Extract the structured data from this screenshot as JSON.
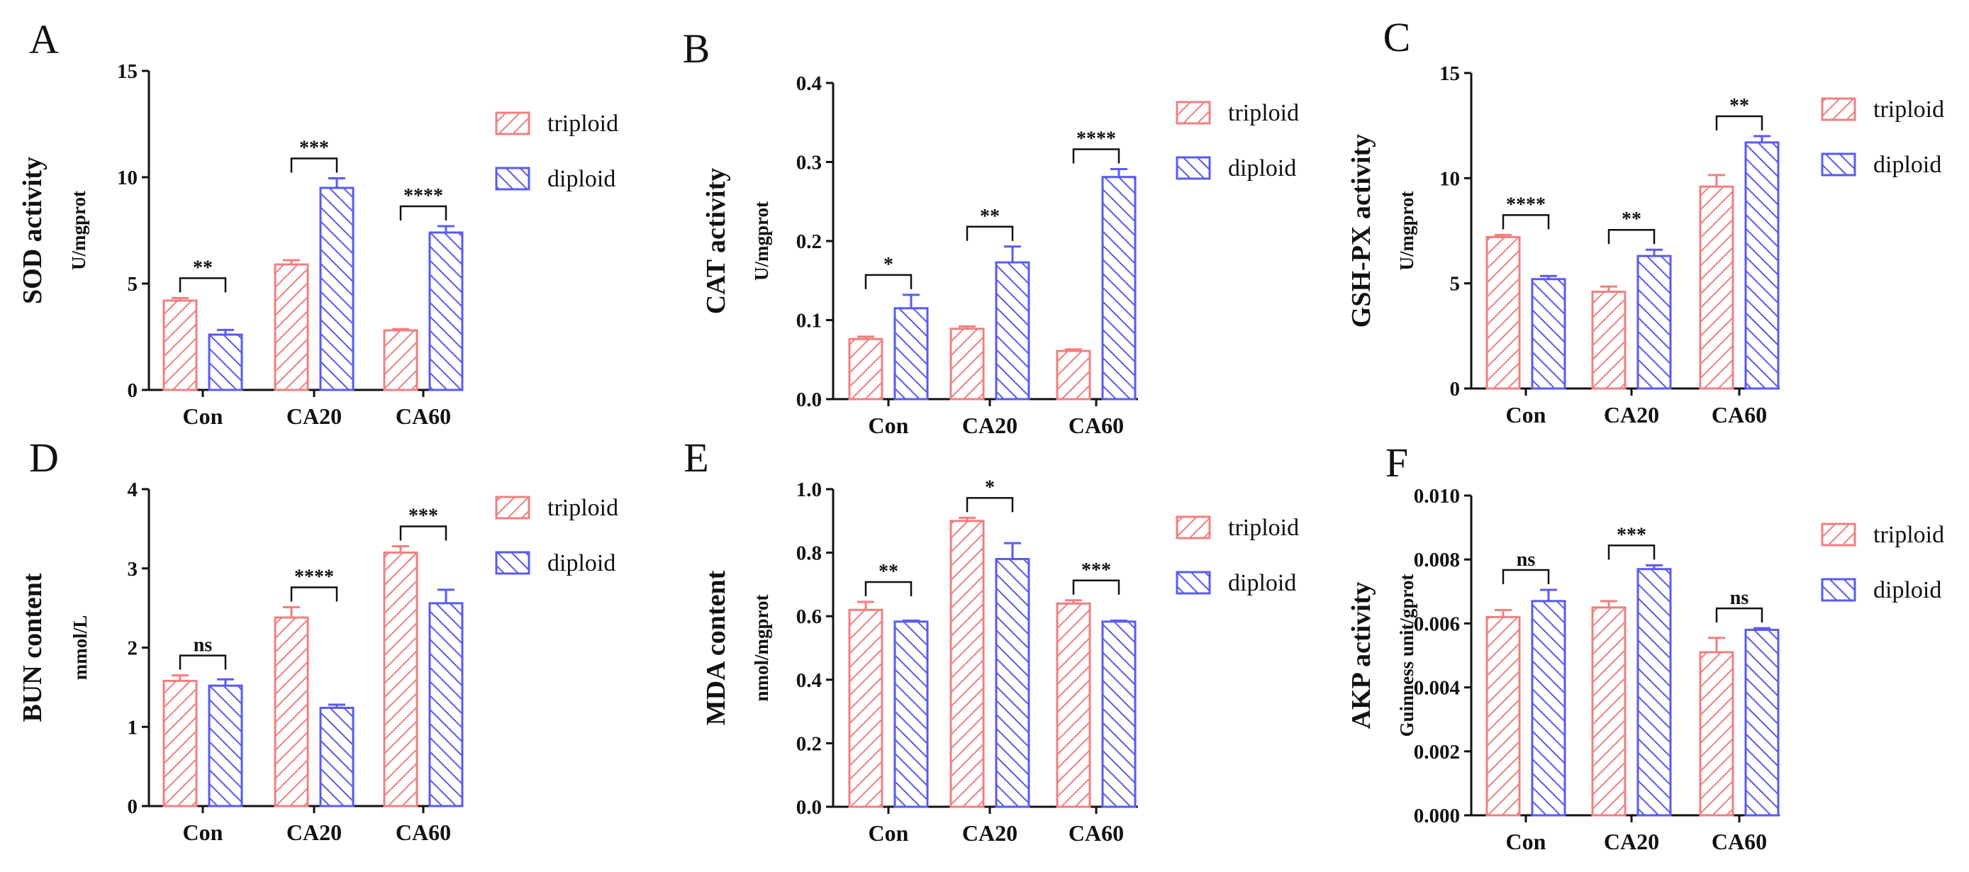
{
  "legend": {
    "triploid": "triploid",
    "diploid": "diploid"
  },
  "colors": {
    "triploid": "#f07f80",
    "diploid": "#5a5af0",
    "axis": "#111111"
  },
  "chart_data": [
    {
      "type": "bar",
      "panel": "A",
      "ylabel": "SOD activity",
      "yunit": "U/mgprot",
      "ylim": [
        0,
        15
      ],
      "yticks": [
        "0",
        "5",
        "10",
        "15"
      ],
      "categories": [
        "Con",
        "CA20",
        "CA60"
      ],
      "series": [
        {
          "name": "triploid",
          "values": [
            4.2,
            5.9,
            2.8
          ],
          "errors": [
            0.12,
            0.2,
            0.06
          ]
        },
        {
          "name": "diploid",
          "values": [
            2.6,
            9.5,
            7.4
          ],
          "errors": [
            0.22,
            0.45,
            0.3
          ]
        }
      ],
      "significance": [
        "**",
        "***",
        "****"
      ]
    },
    {
      "type": "bar",
      "panel": "B",
      "ylabel": "CAT activity",
      "yunit": "U/mgprot",
      "ylim": [
        0,
        0.4
      ],
      "yticks": [
        "0.0",
        "0.1",
        "0.2",
        "0.3",
        "0.4"
      ],
      "categories": [
        "Con",
        "CA20",
        "CA60"
      ],
      "series": [
        {
          "name": "triploid",
          "values": [
            0.076,
            0.089,
            0.061
          ],
          "errors": [
            0.003,
            0.003,
            0.002
          ]
        },
        {
          "name": "diploid",
          "values": [
            0.115,
            0.173,
            0.281
          ],
          "errors": [
            0.017,
            0.02,
            0.01
          ]
        }
      ],
      "significance": [
        "*",
        "**",
        "****"
      ]
    },
    {
      "type": "bar",
      "panel": "C",
      "ylabel": "GSH-PX activity",
      "yunit": "U/mgprot",
      "ylim": [
        0,
        15
      ],
      "yticks": [
        "0",
        "5",
        "10",
        "15"
      ],
      "categories": [
        "Con",
        "CA20",
        "CA60"
      ],
      "series": [
        {
          "name": "triploid",
          "values": [
            7.2,
            4.6,
            9.6
          ],
          "errors": [
            0.1,
            0.25,
            0.55
          ]
        },
        {
          "name": "diploid",
          "values": [
            5.2,
            6.3,
            11.7
          ],
          "errors": [
            0.15,
            0.3,
            0.3
          ]
        }
      ],
      "significance": [
        "****",
        "**",
        "**"
      ]
    },
    {
      "type": "bar",
      "panel": "D",
      "ylabel": "BUN content",
      "yunit": "mmol/L",
      "ylim": [
        0,
        4
      ],
      "yticks": [
        "0",
        "1",
        "2",
        "3",
        "4"
      ],
      "categories": [
        "Con",
        "CA20",
        "CA60"
      ],
      "series": [
        {
          "name": "triploid",
          "values": [
            1.58,
            2.38,
            3.2
          ],
          "errors": [
            0.07,
            0.13,
            0.08
          ]
        },
        {
          "name": "diploid",
          "values": [
            1.52,
            1.24,
            2.56
          ],
          "errors": [
            0.08,
            0.04,
            0.17
          ]
        }
      ],
      "significance": [
        "ns",
        "****",
        "***"
      ]
    },
    {
      "type": "bar",
      "panel": "E",
      "ylabel": "MDA content",
      "yunit": "nmol/mgprot",
      "ylim": [
        0,
        1.0
      ],
      "yticks": [
        "0.0",
        "0.2",
        "0.4",
        "0.6",
        "0.8",
        "1.0"
      ],
      "categories": [
        "Con",
        "CA20",
        "CA60"
      ],
      "series": [
        {
          "name": "triploid",
          "values": [
            0.62,
            0.9,
            0.64
          ],
          "errors": [
            0.025,
            0.01,
            0.01
          ]
        },
        {
          "name": "diploid",
          "values": [
            0.583,
            0.78,
            0.583
          ],
          "errors": [
            0.003,
            0.05,
            0.003
          ]
        }
      ],
      "significance": [
        "**",
        "*",
        "***"
      ]
    },
    {
      "type": "bar",
      "panel": "F",
      "ylabel": "AKP activity",
      "yunit": "Guinness unit/gprot",
      "ylim": [
        0,
        0.01
      ],
      "yticks": [
        "0.000",
        "0.002",
        "0.004",
        "0.006",
        "0.008",
        "0.010"
      ],
      "categories": [
        "Con",
        "CA20",
        "CA60"
      ],
      "series": [
        {
          "name": "triploid",
          "values": [
            0.0062,
            0.0065,
            0.0051
          ],
          "errors": [
            0.00022,
            0.0002,
            0.00045
          ]
        },
        {
          "name": "diploid",
          "values": [
            0.0067,
            0.0077,
            0.0058
          ],
          "errors": [
            0.00035,
            0.00012,
            5e-05
          ]
        }
      ],
      "significance": [
        "ns",
        "***",
        "ns"
      ]
    }
  ]
}
